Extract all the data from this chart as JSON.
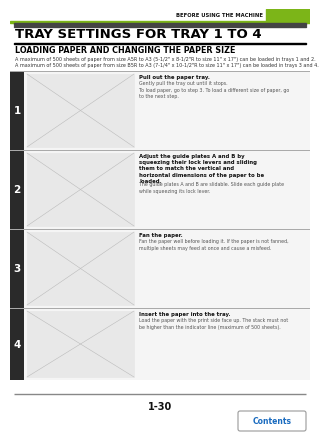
{
  "header_text": "BEFORE USING THE MACHINE",
  "header_bar_color": "#7cb518",
  "page_bg": "#ffffff",
  "title_main": "TRAY SETTINGS FOR TRAY 1 TO 4",
  "title_sub": "LOADING PAPER AND CHANGING THE PAPER SIZE",
  "intro_text1": "A maximum of 500 sheets of paper from size A5R to A3 (5-1/2\" x 8-1/2\"R to size 11\" x 17\") can be loaded in trays 1 and 2.",
  "intro_text2": "A maximum of 500 sheets of paper from size B5R to A3 (7-1/4\" x 10-1/2\"R to size 11\" x 17\") can be loaded in trays 3 and 4.",
  "steps": [
    {
      "num": "1",
      "title": "Pull out the paper tray.",
      "body": "Gently pull the tray out until it stops.\nTo load paper, go to step 3. To load a different size of paper, go\nto the next step."
    },
    {
      "num": "2",
      "title": "Adjust the guide plates A and B by\nsqueezing their lock levers and sliding\nthem to match the vertical and\nhorizontal dimensions of the paper to be\nloaded.",
      "body": "The guide plates A and B are slidable. Slide each guide plate\nwhile squeezing its lock lever."
    },
    {
      "num": "3",
      "title": "Fan the paper.",
      "body": "Fan the paper well before loading it. If the paper is not fanned,\nmultiple sheets may feed at once and cause a misfeed."
    },
    {
      "num": "4",
      "title": "Insert the paper into the tray.",
      "body": "Load the paper with the print side face up. The stack must not\nbe higher than the indicator line (maximum of 500 sheets)."
    }
  ],
  "page_num": "1-30",
  "contents_text": "Contents",
  "contents_color": "#1a6bbf",
  "step_num_bg": "#2a2a2a",
  "step_num_color": "#ffffff",
  "img_box_bg": "#e8e8e8",
  "img_box_border": "#999999"
}
